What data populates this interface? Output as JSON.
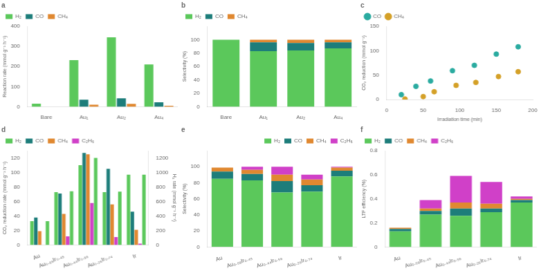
{
  "chart_data": [
    {
      "type": "bar",
      "title": "a",
      "categories": [
        "Bare",
        "Au₁",
        "Au₂",
        "Au₄"
      ],
      "series": [
        {
          "name": "H₂",
          "color": "#5bc85b",
          "values": [
            15,
            232,
            345,
            210
          ]
        },
        {
          "name": "CO",
          "color": "#1d7d7a",
          "values": [
            0,
            35,
            42,
            22
          ]
        },
        {
          "name": "CH₄",
          "color": "#e08830",
          "values": [
            0,
            10,
            14,
            5
          ]
        }
      ],
      "ylabel": "Reaction rate (mmol g⁻¹ h⁻¹)",
      "ylim": [
        0,
        400
      ],
      "yticks": [
        0,
        100,
        200,
        300,
        400
      ],
      "grid": false,
      "legend": "upper left"
    },
    {
      "type": "bar",
      "title": "b",
      "stacked": true,
      "categories": [
        "Bare",
        "Au₁",
        "Au₂",
        "Au₄"
      ],
      "series": [
        {
          "name": "H₂",
          "color": "#5bc85b",
          "values": [
            100,
            83,
            84,
            87
          ]
        },
        {
          "name": "CO",
          "color": "#1d7d7a",
          "values": [
            0,
            13,
            11,
            9
          ]
        },
        {
          "name": "CH₄",
          "color": "#e08830",
          "values": [
            0,
            4,
            5,
            4
          ]
        }
      ],
      "ylabel": "Selectivity (%)",
      "ylim": [
        0,
        120
      ],
      "yticks": [
        0,
        20,
        40,
        60,
        80,
        100
      ],
      "grid": false,
      "legend": "upper left"
    },
    {
      "type": "scatter",
      "title": "c",
      "series": [
        {
          "name": "CO",
          "color": "#2aaba0",
          "x": [
            20,
            40,
            60,
            90,
            120,
            150,
            180
          ],
          "values": [
            10,
            27,
            38,
            59,
            70,
            93,
            108
          ]
        },
        {
          "name": "CH₄",
          "color": "#d4a027",
          "x": [
            25,
            50,
            65,
            95,
            122,
            153,
            180
          ],
          "values": [
            1,
            6,
            16,
            29,
            35,
            47,
            57
          ]
        }
      ],
      "xlabel": "Irradiation time (min)",
      "ylabel": "CO₂ reduction (mmol g⁻¹)",
      "xlim": [
        0,
        200
      ],
      "xticks": [
        0,
        50,
        100,
        150,
        200
      ],
      "ylim": [
        0,
        150
      ],
      "yticks": [
        0,
        50,
        100,
        150
      ],
      "grid": false,
      "legend": "upper left"
    },
    {
      "type": "bar",
      "title": "d",
      "categories": [
        "Au",
        "Au₀.₅₉Ir₀.₄₅",
        "Au₀.₄₄Ir₀.₅₆",
        "Au₀.₂₆Ir₀.₇₄",
        "Ir"
      ],
      "series": [
        {
          "name": "H₂",
          "color": "#5bc85b",
          "values": [
            33,
            73,
            110,
            73,
            97
          ]
        },
        {
          "name": "CO",
          "color": "#1d7d7a",
          "values": [
            38,
            71,
            127,
            105,
            46
          ]
        },
        {
          "name": "CH₄",
          "color": "#e08830",
          "values": [
            19,
            43,
            125,
            56,
            21
          ]
        },
        {
          "name": "C₂H₆",
          "color": "#d040c8",
          "values": [
            0,
            12,
            58,
            11,
            2
          ]
        },
        {
          "color": "#5bc85b",
          "values": [
            330,
            740,
            1200,
            735,
            970
          ],
          "axis": "y2"
        }
      ],
      "ylabel": "CO₂ reduction rate (mmol g⁻¹ h⁻¹)",
      "ylim": [
        0,
        130
      ],
      "yticks": [
        0,
        20,
        40,
        60,
        80,
        100,
        120
      ],
      "y2label": "H₂ rate (mmol g⁻¹ h⁻¹)",
      "y2lim": [
        0,
        1300
      ],
      "y2ticks": [
        0,
        200,
        400,
        600,
        800,
        1000,
        1200
      ],
      "grid": false,
      "legend": "upper left"
    },
    {
      "type": "bar",
      "title": "e",
      "stacked": true,
      "categories": [
        "Au",
        "Au₀.₅₉Ir₀.₄₅",
        "Au₀.₄₄Ir₀.₅₆",
        "Au₀.₂₆Ir₀.₇₄",
        "Ir"
      ],
      "series": [
        {
          "name": "H₂",
          "color": "#5bc85b",
          "values": [
            85,
            83,
            68,
            69,
            88
          ]
        },
        {
          "name": "CO",
          "color": "#1d7d7a",
          "values": [
            9,
            8,
            14,
            8,
            7
          ]
        },
        {
          "name": "CH₄",
          "color": "#e08830",
          "values": [
            5,
            5,
            8,
            7,
            4
          ]
        },
        {
          "name": "C₂H₆",
          "color": "#d040c8",
          "values": [
            0,
            4,
            10,
            6,
            1
          ]
        }
      ],
      "ylabel": "Selectivity (%)",
      "ylim": [
        0,
        120
      ],
      "yticks": [
        0,
        20,
        40,
        60,
        80,
        100
      ],
      "grid": false,
      "legend": "upper right"
    },
    {
      "type": "bar",
      "title": "f",
      "stacked": true,
      "categories": [
        "Au",
        "Au₀.₅₉Ir₀.₄₅",
        "Au₀.₄₄Ir₀.₅₆",
        "Au₀.₂₆Ir₀.₇₄",
        "Ir"
      ],
      "series": [
        {
          "name": "H₂",
          "color": "#5bc85b",
          "values": [
            0.13,
            0.27,
            0.26,
            0.29,
            0.37
          ]
        },
        {
          "name": "CO",
          "color": "#1d7d7a",
          "values": [
            0.02,
            0.03,
            0.06,
            0.03,
            0.02
          ]
        },
        {
          "name": "CH₄",
          "color": "#e08830",
          "values": [
            0.01,
            0.02,
            0.05,
            0.04,
            0.01
          ]
        },
        {
          "name": "C₂H₆",
          "color": "#d040c8",
          "values": [
            0.0,
            0.07,
            0.22,
            0.18,
            0.02
          ]
        }
      ],
      "ylabel": "LTF efficiency (%)",
      "ylim": [
        0,
        0.8
      ],
      "yticks": [
        0,
        0.2,
        0.4,
        0.6,
        0.8
      ],
      "grid": false,
      "legend": "upper left"
    }
  ]
}
